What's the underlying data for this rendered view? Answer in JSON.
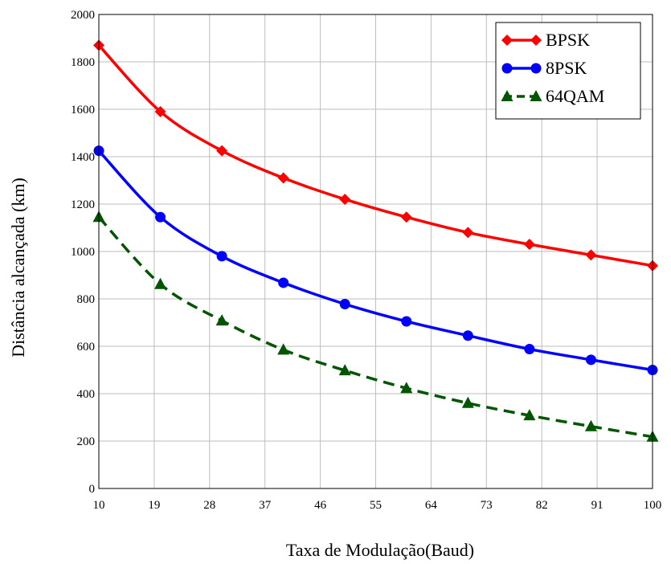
{
  "chart_data": {
    "type": "line",
    "title": "",
    "xlabel": "Taxa de Modulação(Baud)",
    "ylabel": "Distância alcançada (km)",
    "x_ticks": [
      "10",
      "19",
      "28",
      "37",
      "46",
      "55",
      "64",
      "73",
      "82",
      "91",
      "100"
    ],
    "y_ticks": [
      "0",
      "200",
      "400",
      "600",
      "800",
      "1000",
      "1200",
      "1400",
      "1600",
      "1800",
      "2000"
    ],
    "xlim": [
      10,
      100
    ],
    "ylim": [
      0,
      2000
    ],
    "grid": true,
    "legend_position": "top-right",
    "x": [
      10,
      20,
      30,
      40,
      50,
      60,
      70,
      80,
      90,
      100
    ],
    "series": [
      {
        "name": "BPSK",
        "color": "#ff0000",
        "marker": "diamond",
        "line_style": "solid",
        "values": [
          1870,
          1590,
          1425,
          1310,
          1220,
          1145,
          1080,
          1030,
          985,
          940
        ]
      },
      {
        "name": "8PSK",
        "color": "#0000ff",
        "marker": "circle",
        "line_style": "solid",
        "values": [
          1425,
          1145,
          980,
          868,
          778,
          705,
          645,
          588,
          543,
          500
        ]
      },
      {
        "name": "64QAM",
        "color": "#005500",
        "marker": "triangle",
        "line_style": "dashed",
        "values": [
          1145,
          862,
          708,
          585,
          498,
          423,
          360,
          308,
          262,
          218
        ]
      }
    ]
  }
}
